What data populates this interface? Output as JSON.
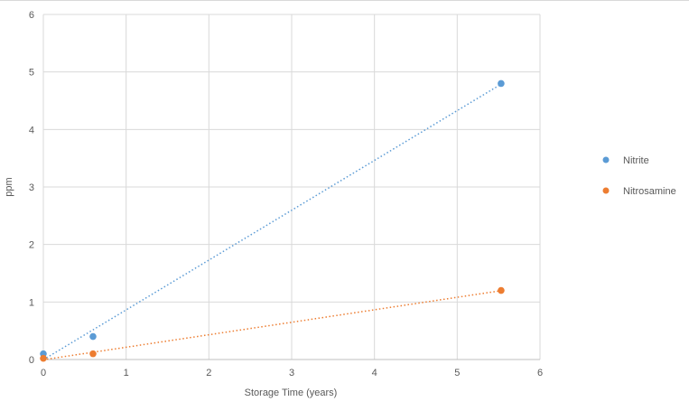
{
  "chart_data": {
    "type": "scatter",
    "title": "",
    "xlabel": "Storage Time (years)",
    "ylabel": "ppm",
    "xlim": [
      0,
      6
    ],
    "ylim": [
      0,
      6
    ],
    "xticks": [
      "0",
      "1",
      "2",
      "3",
      "4",
      "5",
      "6"
    ],
    "yticks": [
      "0",
      "1",
      "2",
      "3",
      "4",
      "5",
      "6"
    ],
    "grid": true,
    "legend_position": "right",
    "trendline": "linear, dotted",
    "series": [
      {
        "name": "Nitrite",
        "color": "#5B9BD5",
        "x": [
          0,
          0.6,
          5.53
        ],
        "y": [
          0.1,
          0.4,
          4.8
        ]
      },
      {
        "name": "Nitrosamine",
        "color": "#ED7D31",
        "x": [
          0,
          0.6,
          5.53
        ],
        "y": [
          0.02,
          0.1,
          1.2
        ]
      }
    ]
  }
}
